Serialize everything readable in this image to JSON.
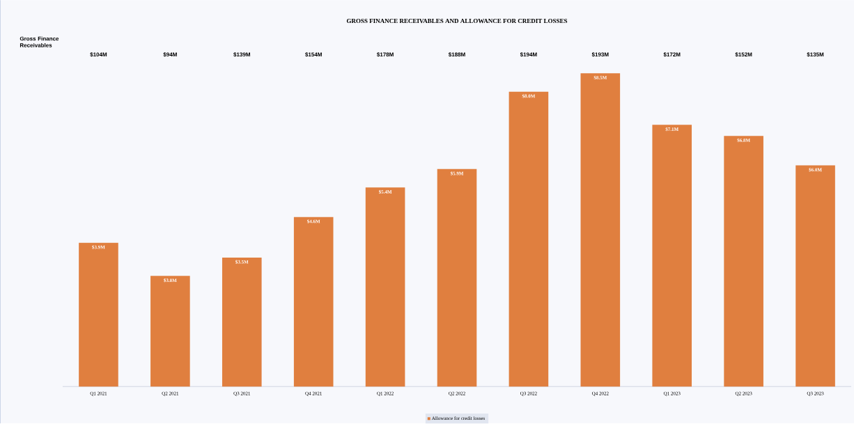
{
  "chart_data": {
    "type": "bar",
    "title": "GROSS FINANCE RECEIVABLES AND ALLOWANCE FOR CREDIT LOSSES",
    "categories": [
      "Q1 2021",
      "Q2 2021",
      "Q3 2021",
      "Q4 2021",
      "Q1 2022",
      "Q2 2022",
      "Q3 2022",
      "Q4 2022",
      "Q1 2023",
      "Q2 2023",
      "Q3 2023"
    ],
    "series": [
      {
        "name": "Allowance for credit losses",
        "color": "#e07f3f",
        "values": [
          3.9,
          3.0,
          3.5,
          4.6,
          5.4,
          5.9,
          8.0,
          8.5,
          7.1,
          6.8,
          6.0
        ],
        "value_labels": [
          "$3.9M",
          "$3.0M",
          "$3.5M",
          "$4.6M",
          "$5.4M",
          "$5.9M",
          "$8.0M",
          "$8.5M",
          "$7.1M",
          "$6.8M",
          "$6.0M"
        ]
      }
    ],
    "annotations": [
      "Gross Finance Receivables",
      "$104M",
      "$94M",
      "$139M",
      "$154M",
      "$178M",
      "$188M",
      "$194M",
      "$193M",
      "$172M",
      "$152M",
      "$135M"
    ],
    "legend": "bottom"
  }
}
